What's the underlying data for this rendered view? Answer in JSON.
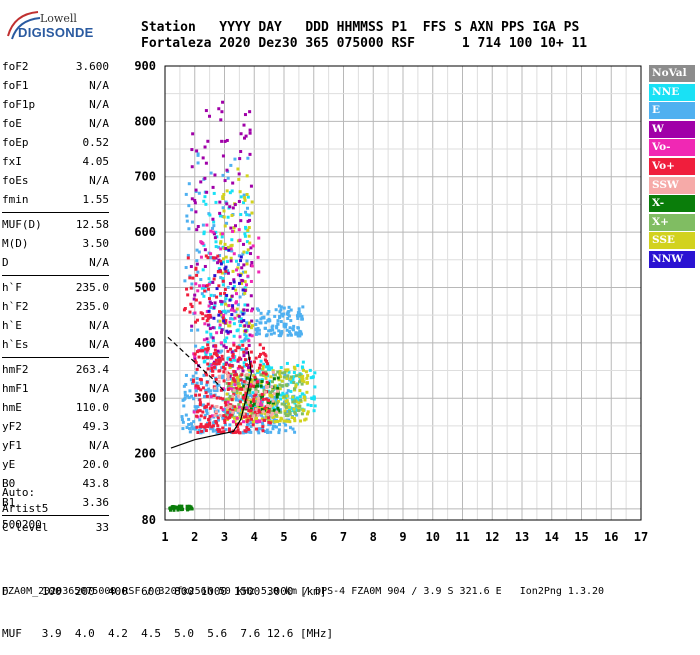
{
  "logo": {
    "line1": "Lowell",
    "line2": "DIGISONDE"
  },
  "header": {
    "line1": "Station   YYYY DAY   DDD HHMMSS P1  FFS S AXN PPS IGA PS",
    "line2": "Fortaleza 2020 Dez30 365 075000 RSF      1 714 100 10+ 11"
  },
  "params": {
    "groups": [
      [
        [
          "foF2",
          "3.600"
        ],
        [
          "foF1",
          "N/A"
        ],
        [
          "foF1p",
          "N/A"
        ],
        [
          "foE",
          "N/A"
        ],
        [
          "foEp",
          "0.52"
        ],
        [
          "fxI",
          "4.05"
        ],
        [
          "foEs",
          "N/A"
        ],
        [
          "fmin",
          "1.55"
        ]
      ],
      [
        [
          "MUF(D)",
          "12.58"
        ],
        [
          "M(D)",
          "3.50"
        ],
        [
          "D",
          "N/A"
        ]
      ],
      [
        [
          "h`F",
          "235.0"
        ],
        [
          "h`F2",
          "235.0"
        ],
        [
          "h`E",
          "N/A"
        ],
        [
          "h`Es",
          "N/A"
        ]
      ],
      [
        [
          "hmF2",
          "263.4"
        ],
        [
          "hmF1",
          "N/A"
        ],
        [
          "hmE",
          "110.0"
        ],
        [
          "yF2",
          "49.3"
        ],
        [
          "yF1",
          "N/A"
        ],
        [
          "yE",
          "20.0"
        ],
        [
          "B0",
          "43.8"
        ],
        [
          "B1",
          "3.36"
        ]
      ],
      [
        [
          "C-level",
          "33"
        ]
      ]
    ]
  },
  "auto": {
    "line1": "Auto:",
    "line2": "Artist5",
    "line3": "500200"
  },
  "legend": [
    {
      "label": "NoVal",
      "color": "#8c8c8c"
    },
    {
      "label": "NNE",
      "color": "#19e1f5"
    },
    {
      "label": "E",
      "color": "#4fb0f0"
    },
    {
      "label": "W",
      "color": "#a000a8"
    },
    {
      "label": "Vo-",
      "color": "#f028b4"
    },
    {
      "label": "Vo+",
      "color": "#f01e3c"
    },
    {
      "label": "SSW",
      "color": "#f6aaa8"
    },
    {
      "label": "X-",
      "color": "#0a7d0a"
    },
    {
      "label": "X+",
      "color": "#80bd62"
    },
    {
      "label": "SSE",
      "color": "#d2d21e"
    },
    {
      "label": "NNW",
      "color": "#2a12d2"
    }
  ],
  "chart_data": {
    "type": "scatter",
    "x_ticks": [
      "1",
      "2",
      "3",
      "4",
      "5",
      "6",
      "7",
      "8",
      "9",
      "10",
      "11",
      "12",
      "13",
      "14",
      "15",
      "16",
      "17"
    ],
    "y_ticks": [
      "200",
      "300",
      "400",
      "500",
      "600",
      "700",
      "800",
      "900"
    ],
    "xlim": [
      1,
      17
    ],
    "ylim": [
      80,
      900
    ],
    "grid": true,
    "legend_position": "right",
    "clusters": [
      {
        "series": "E",
        "fmin": 1.5,
        "fmax": 5.4,
        "hmin": 240,
        "hmax": 345,
        "n": 280
      },
      {
        "series": "E",
        "fmin": 4.0,
        "fmax": 5.6,
        "hmin": 415,
        "hmax": 470,
        "n": 110
      },
      {
        "series": "E",
        "fmin": 1.6,
        "fmax": 3.8,
        "hmin": 300,
        "hmax": 760,
        "n": 130
      },
      {
        "series": "NNE",
        "fmin": 2.2,
        "fmax": 3.8,
        "hmin": 360,
        "hmax": 690,
        "n": 120
      },
      {
        "series": "NNE",
        "fmin": 3.5,
        "fmax": 6.0,
        "hmin": 280,
        "hmax": 370,
        "n": 120
      },
      {
        "series": "SSE",
        "fmin": 3.0,
        "fmax": 5.8,
        "hmin": 260,
        "hmax": 360,
        "n": 200
      },
      {
        "series": "SSE",
        "fmin": 2.8,
        "fmax": 3.9,
        "hmin": 420,
        "hmax": 720,
        "n": 70
      },
      {
        "series": "X+",
        "fmin": 3.0,
        "fmax": 5.6,
        "hmin": 270,
        "hmax": 350,
        "n": 120
      },
      {
        "series": "X-",
        "fmin": 3.5,
        "fmax": 4.8,
        "hmin": 280,
        "hmax": 340,
        "n": 45
      },
      {
        "series": "W",
        "fmin": 1.8,
        "fmax": 3.9,
        "hmin": 340,
        "hmax": 840,
        "n": 150
      },
      {
        "series": "Vo-",
        "fmin": 1.9,
        "fmax": 4.2,
        "hmin": 260,
        "hmax": 620,
        "n": 90
      },
      {
        "series": "Vo+",
        "fmin": 1.9,
        "fmax": 4.5,
        "hmin": 240,
        "hmax": 400,
        "n": 260
      },
      {
        "series": "Vo+",
        "fmin": 1.6,
        "fmax": 3.0,
        "hmin": 440,
        "hmax": 560,
        "n": 50
      },
      {
        "series": "SSW",
        "fmin": 2.5,
        "fmax": 4.8,
        "hmin": 270,
        "hmax": 350,
        "n": 50
      },
      {
        "series": "NNW",
        "fmin": 2.4,
        "fmax": 3.6,
        "hmin": 420,
        "hmax": 600,
        "n": 25
      },
      {
        "series": "X-",
        "fmin": 1.1,
        "fmax": 1.9,
        "hmin": 100,
        "hmax": 108,
        "n": 30
      }
    ],
    "trace_line": [
      [
        1.2,
        210
      ],
      [
        2.0,
        225
      ],
      [
        2.6,
        232
      ],
      [
        3.3,
        240
      ],
      [
        3.55,
        262
      ],
      [
        3.75,
        305
      ],
      [
        3.9,
        345
      ],
      [
        3.8,
        385
      ]
    ],
    "trace_dashed": [
      [
        1.1,
        410
      ],
      [
        1.6,
        385
      ],
      [
        2.2,
        355
      ],
      [
        2.7,
        330
      ],
      [
        3.0,
        312
      ]
    ]
  },
  "table": {
    "row1": "D     100  200  400  600  800 1000 1500 3000 [km]",
    "row2": "MUF   3.9  4.0  4.2  4.5  5.0  5.6  7.6 12.6 [MHz]"
  },
  "footer": "FZA0M_2020365075000.RSF / 320fx256h 50 kHz 5.0 km / DPS-4 FZA0M 904 / 3.9 S 321.6 E   Ion2Png 1.3.20"
}
